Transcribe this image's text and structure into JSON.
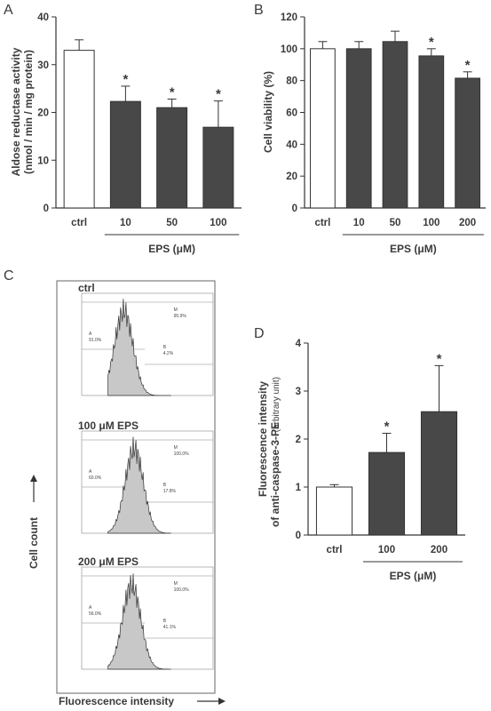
{
  "panels": {
    "A": "A",
    "B": "B",
    "C": "C",
    "D": "D"
  },
  "chart_data": [
    {
      "panel": "A",
      "type": "bar",
      "categories": [
        "ctrl",
        "10",
        "50",
        "100"
      ],
      "values": [
        33,
        22.3,
        21,
        16.9
      ],
      "errors": [
        2.2,
        3.2,
        1.8,
        5.5
      ],
      "significant": [
        false,
        true,
        true,
        true
      ],
      "ylabel": "Aldose reductase  activity",
      "ylabel2": "(nmol / min / mg protein)",
      "xgroup_label": "EPS  (μM)",
      "ylim": [
        0,
        40
      ],
      "yticks": [
        0,
        10,
        20,
        30,
        40
      ],
      "colors": [
        "#ffffff",
        "#484848",
        "#484848",
        "#484848"
      ]
    },
    {
      "panel": "B",
      "type": "bar",
      "categories": [
        "ctrl",
        "10",
        "50",
        "100",
        "200"
      ],
      "values": [
        100,
        100,
        104.5,
        95.5,
        81.5
      ],
      "errors": [
        4.5,
        4.5,
        6.5,
        4.5,
        4
      ],
      "significant": [
        false,
        false,
        false,
        true,
        true
      ],
      "ylabel": "Cell viability  (%)",
      "xgroup_label": "EPS  (μM)",
      "ylim": [
        0,
        120
      ],
      "yticks": [
        0,
        20,
        40,
        60,
        80,
        100,
        120
      ],
      "colors": [
        "#ffffff",
        "#484848",
        "#484848",
        "#484848",
        "#484848"
      ]
    },
    {
      "panel": "D",
      "type": "bar",
      "categories": [
        "ctrl",
        "100",
        "200"
      ],
      "values": [
        1.0,
        1.72,
        2.57
      ],
      "errors": [
        0.05,
        0.4,
        0.96
      ],
      "significant": [
        false,
        true,
        true
      ],
      "ylabel": "Fluorescence intensity",
      "ylabel2": "of anti-caspase-3-PE",
      "ylabel_unit": "(arbitrary unit)",
      "xgroup_label": "EPS  (μM)",
      "ylim": [
        0,
        4
      ],
      "yticks": [
        0,
        1,
        2,
        3,
        4
      ],
      "colors": [
        "#ffffff",
        "#484848",
        "#484848"
      ]
    }
  ],
  "flow": {
    "ylabel": "Cell count",
    "xlabel": "Fluorescence intensity",
    "histograms": [
      {
        "title": "ctrl",
        "peak": 0.32,
        "m_label": "M",
        "m_pct": "95.9%",
        "a_label": "A",
        "a_pct": "91.0%",
        "b_label": "B",
        "b_pct": "4.2%"
      },
      {
        "title": "100 μM  EPS",
        "peak": 0.4,
        "m_label": "M",
        "m_pct": "100.0%",
        "a_label": "A",
        "a_pct": "60.0%",
        "b_label": "B",
        "b_pct": "17.8%"
      },
      {
        "title": "200 μM  EPS",
        "peak": 0.38,
        "m_label": "M",
        "m_pct": "100.0%",
        "a_label": "A",
        "a_pct": "56.0%",
        "b_label": "B",
        "b_pct": "41.1%"
      }
    ]
  }
}
